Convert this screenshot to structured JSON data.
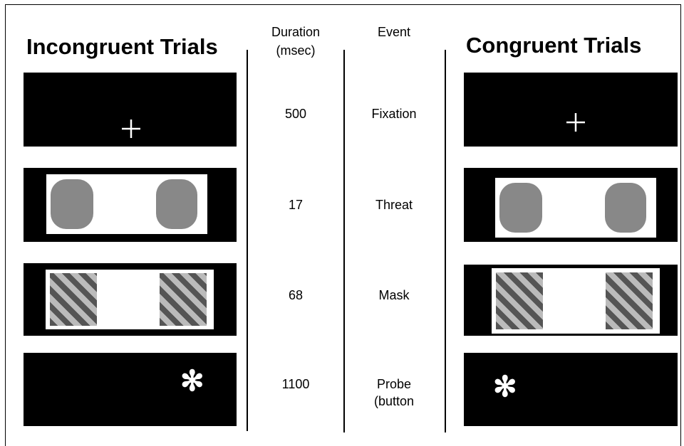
{
  "headers": {
    "left_title": "Incongruent Trials",
    "duration": "Duration (msec)",
    "event": "Event",
    "right_title": "Congruent Trials"
  },
  "rows": [
    {
      "duration": 500,
      "event": "Fixation"
    },
    {
      "duration": 17,
      "event": "Threat"
    },
    {
      "duration": 68,
      "event": "Mask"
    },
    {
      "duration": 1100,
      "event": "Probe (button"
    }
  ]
}
